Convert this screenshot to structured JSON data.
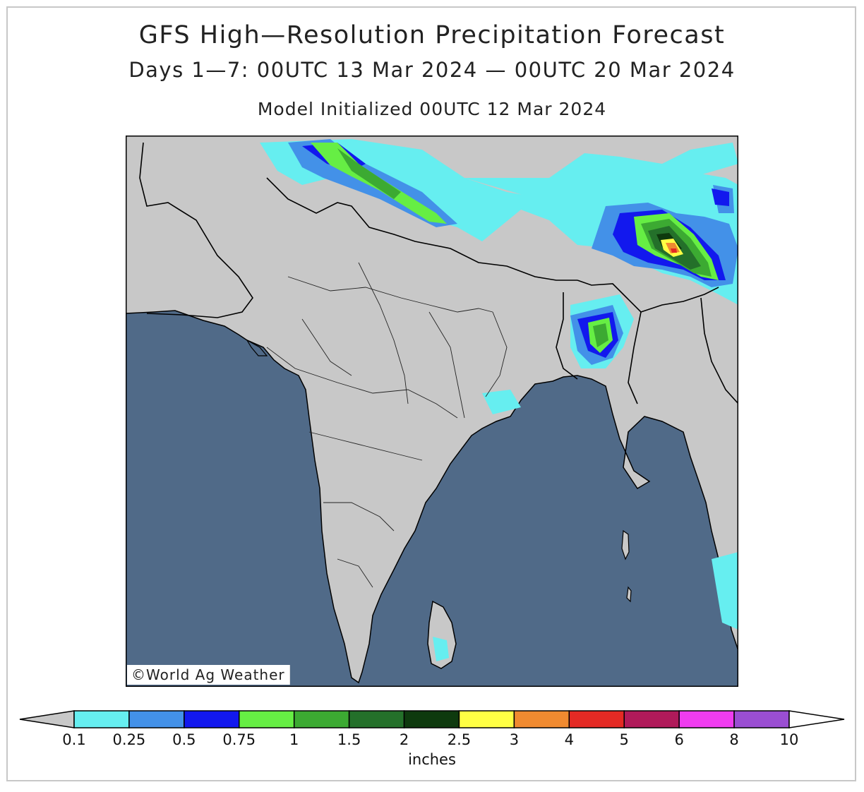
{
  "header": {
    "title": "GFS High—Resolution Precipitation Forecast",
    "subtitle": "Days 1—7: 00UTC 13 Mar 2024 — 00UTC 20 Mar 2024",
    "init": "Model Initialized 00UTC 12 Mar 2024"
  },
  "credit": "©World Ag Weather",
  "colors": {
    "land": "#c8c8c8",
    "ocean": "#506a88",
    "border": "#000000"
  },
  "legend": {
    "units": "inches",
    "labels": [
      "0.1",
      "0.25",
      "0.5",
      "0.75",
      "1",
      "1.5",
      "2",
      "2.5",
      "3",
      "4",
      "5",
      "6",
      "8",
      "10"
    ],
    "below_color": "#c8c8c8",
    "above_color": "#ffffff",
    "colors": [
      "#66eef0",
      "#4391e8",
      "#1218ee",
      "#66ee44",
      "#3caa32",
      "#24702a",
      "#0e3a0e",
      "#ffff44",
      "#f08a30",
      "#e42a24",
      "#b01a5a",
      "#f03cf0",
      "#9a4ed2"
    ]
  }
}
